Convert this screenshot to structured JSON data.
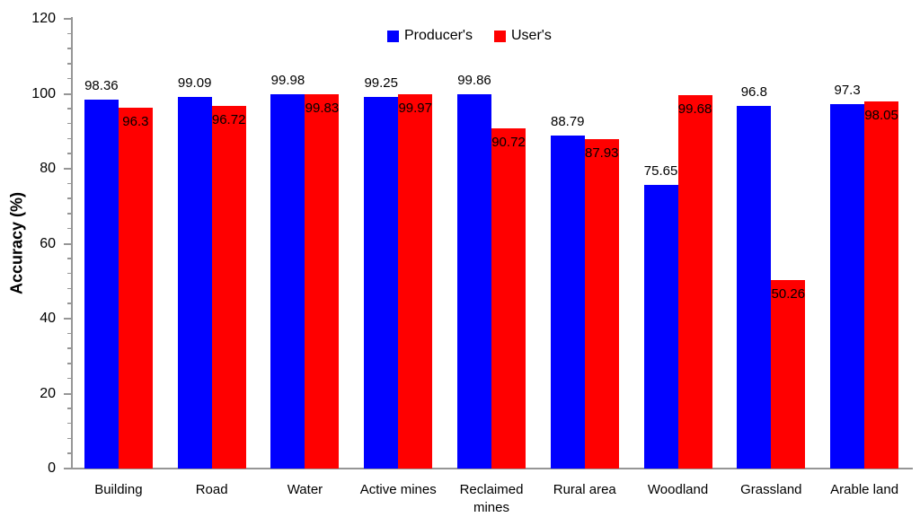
{
  "chart_data": {
    "type": "bar",
    "title": "",
    "xlabel": "",
    "ylabel": "Accuracy (%)",
    "ylim": [
      0,
      120
    ],
    "ytick_step": 20,
    "minor_tick_step": 4,
    "grid": false,
    "legend_position": "top-center",
    "axis_color": "#969696",
    "label_color": "#000000",
    "categories": [
      "Building",
      "Road",
      "Water",
      "Active mines",
      "Reclaimed mines",
      "Rural area",
      "Woodland",
      "Grassland",
      "Arable land"
    ],
    "series": [
      {
        "name": "Producer's",
        "color": "#0000ff",
        "values": [
          98.36,
          99.09,
          99.98,
          99.25,
          99.86,
          88.79,
          75.65,
          96.8,
          97.3
        ]
      },
      {
        "name": "User's",
        "color": "#ff0000",
        "values": [
          96.3,
          96.72,
          99.83,
          99.97,
          90.72,
          87.93,
          99.68,
          50.26,
          98.05
        ]
      }
    ]
  }
}
